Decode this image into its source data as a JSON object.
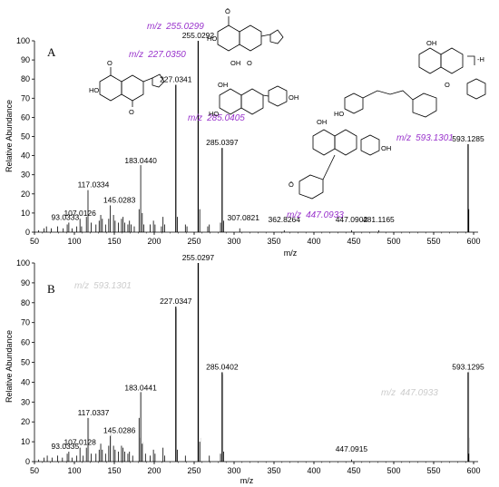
{
  "chart_data": [
    {
      "type": "bar",
      "panel": "A",
      "xlabel": "m/z",
      "ylabel": "Relative Abundance",
      "xlim": [
        50,
        600
      ],
      "ylim": [
        0,
        100
      ],
      "x_ticks": [
        "50",
        "100",
        "150",
        "200",
        "250",
        "300",
        "350",
        "400",
        "450",
        "500",
        "550",
        "600"
      ],
      "y_ticks": [
        "0",
        "10",
        "20",
        "30",
        "40",
        "50",
        "60",
        "70",
        "80",
        "90",
        "100"
      ],
      "peaks": [
        {
          "mz": 55,
          "y": 1
        },
        {
          "mz": 62,
          "y": 2
        },
        {
          "mz": 65,
          "y": 3
        },
        {
          "mz": 71,
          "y": 2
        },
        {
          "mz": 79,
          "y": 3
        },
        {
          "mz": 86,
          "y": 2
        },
        {
          "mz": 91,
          "y": 4
        },
        {
          "mz": 93.0333,
          "y": 5
        },
        {
          "mz": 97,
          "y": 2
        },
        {
          "mz": 103,
          "y": 3
        },
        {
          "mz": 107.0126,
          "y": 7
        },
        {
          "mz": 109,
          "y": 3
        },
        {
          "mz": 115,
          "y": 8
        },
        {
          "mz": 117.0334,
          "y": 22
        },
        {
          "mz": 121,
          "y": 5
        },
        {
          "mz": 127,
          "y": 4
        },
        {
          "mz": 131,
          "y": 6
        },
        {
          "mz": 133,
          "y": 9
        },
        {
          "mz": 135,
          "y": 7
        },
        {
          "mz": 139,
          "y": 4
        },
        {
          "mz": 143,
          "y": 7
        },
        {
          "mz": 145.0283,
          "y": 14
        },
        {
          "mz": 149,
          "y": 9
        },
        {
          "mz": 151,
          "y": 6
        },
        {
          "mz": 155,
          "y": 5
        },
        {
          "mz": 159,
          "y": 7
        },
        {
          "mz": 161,
          "y": 8
        },
        {
          "mz": 163,
          "y": 5
        },
        {
          "mz": 167,
          "y": 4
        },
        {
          "mz": 169,
          "y": 6
        },
        {
          "mz": 171,
          "y": 4
        },
        {
          "mz": 175,
          "y": 3
        },
        {
          "mz": 181,
          "y": 12
        },
        {
          "mz": 183.044,
          "y": 35
        },
        {
          "mz": 185,
          "y": 10
        },
        {
          "mz": 187,
          "y": 4
        },
        {
          "mz": 195,
          "y": 4
        },
        {
          "mz": 199,
          "y": 6
        },
        {
          "mz": 201,
          "y": 4
        },
        {
          "mz": 209,
          "y": 3
        },
        {
          "mz": 211,
          "y": 8
        },
        {
          "mz": 213,
          "y": 4
        },
        {
          "mz": 227.0341,
          "y": 77
        },
        {
          "mz": 229,
          "y": 8
        },
        {
          "mz": 239,
          "y": 4
        },
        {
          "mz": 241,
          "y": 3
        },
        {
          "mz": 255.0292,
          "y": 100
        },
        {
          "mz": 257,
          "y": 12
        },
        {
          "mz": 267,
          "y": 3
        },
        {
          "mz": 269,
          "y": 4
        },
        {
          "mz": 283,
          "y": 5
        },
        {
          "mz": 285.0397,
          "y": 44
        },
        {
          "mz": 287,
          "y": 6
        },
        {
          "mz": 307.0821,
          "y": 2
        },
        {
          "mz": 362.8264,
          "y": 1
        },
        {
          "mz": 447.0902,
          "y": 1
        },
        {
          "mz": 481.1165,
          "y": 1
        },
        {
          "mz": 593.1285,
          "y": 46
        },
        {
          "mz": 594,
          "y": 12
        }
      ],
      "peak_labels": [
        {
          "mz": 93.0333,
          "text": "93.0333"
        },
        {
          "mz": 107.0126,
          "text": "107.0126"
        },
        {
          "mz": 117.0334,
          "text": "117.0334"
        },
        {
          "mz": 145.0283,
          "text": "145.0283"
        },
        {
          "mz": 183.044,
          "text": "183.0440"
        },
        {
          "mz": 227.0341,
          "text": "227.0341"
        },
        {
          "mz": 255.0292,
          "text": "255.0292"
        },
        {
          "mz": 285.0397,
          "text": "285.0397"
        },
        {
          "mz": 307.0821,
          "text": "307.0821"
        },
        {
          "mz": 362.8264,
          "text": "362.8264"
        },
        {
          "mz": 447.0902,
          "text": "447.0902"
        },
        {
          "mz": 481.1165,
          "text": "481.1165"
        },
        {
          "mz": 593.1285,
          "text": "593.1285"
        }
      ],
      "theoretical_labels": [
        {
          "prefix": "m/z",
          "value": "255.0299"
        },
        {
          "prefix": "m/z",
          "value": "227.0350"
        },
        {
          "prefix": "m/z",
          "value": "285.0405"
        },
        {
          "prefix": "m/z",
          "value": "447.0933"
        },
        {
          "prefix": "m/z",
          "value": "593.1301"
        }
      ],
      "structure_text": {
        "o_minus": "Ō",
        "ho": "HO",
        "oh": "OH",
        "o": "O",
        "bracket": "-H"
      }
    },
    {
      "type": "bar",
      "panel": "B",
      "xlabel": "m/z",
      "ylabel": "Relative Abundance",
      "xlim": [
        50,
        600
      ],
      "ylim": [
        0,
        100
      ],
      "x_ticks": [
        "50",
        "100",
        "150",
        "200",
        "250",
        "300",
        "350",
        "400",
        "450",
        "500",
        "550",
        "600"
      ],
      "y_ticks": [
        "0",
        "10",
        "20",
        "30",
        "40",
        "50",
        "60",
        "70",
        "80",
        "90",
        "100"
      ],
      "peaks": [
        {
          "mz": 55,
          "y": 1
        },
        {
          "mz": 62,
          "y": 2
        },
        {
          "mz": 66,
          "y": 3
        },
        {
          "mz": 72,
          "y": 2
        },
        {
          "mz": 79,
          "y": 3
        },
        {
          "mz": 85,
          "y": 2
        },
        {
          "mz": 91,
          "y": 4
        },
        {
          "mz": 93.0335,
          "y": 5
        },
        {
          "mz": 97,
          "y": 2
        },
        {
          "mz": 103,
          "y": 3
        },
        {
          "mz": 107.0128,
          "y": 7
        },
        {
          "mz": 111,
          "y": 3
        },
        {
          "mz": 115,
          "y": 7
        },
        {
          "mz": 117.0337,
          "y": 22
        },
        {
          "mz": 121,
          "y": 4
        },
        {
          "mz": 127,
          "y": 4
        },
        {
          "mz": 131,
          "y": 6
        },
        {
          "mz": 133,
          "y": 9
        },
        {
          "mz": 135,
          "y": 6
        },
        {
          "mz": 139,
          "y": 4
        },
        {
          "mz": 143,
          "y": 8
        },
        {
          "mz": 145.0286,
          "y": 13
        },
        {
          "mz": 149,
          "y": 8
        },
        {
          "mz": 151,
          "y": 6
        },
        {
          "mz": 155,
          "y": 5
        },
        {
          "mz": 159,
          "y": 8
        },
        {
          "mz": 161,
          "y": 7
        },
        {
          "mz": 163,
          "y": 5
        },
        {
          "mz": 167,
          "y": 4
        },
        {
          "mz": 169,
          "y": 5
        },
        {
          "mz": 173,
          "y": 3
        },
        {
          "mz": 181,
          "y": 22
        },
        {
          "mz": 183.0441,
          "y": 35
        },
        {
          "mz": 185,
          "y": 9
        },
        {
          "mz": 189,
          "y": 4
        },
        {
          "mz": 195,
          "y": 3
        },
        {
          "mz": 199,
          "y": 6
        },
        {
          "mz": 201,
          "y": 4
        },
        {
          "mz": 211,
          "y": 7
        },
        {
          "mz": 213,
          "y": 3
        },
        {
          "mz": 227.0347,
          "y": 78
        },
        {
          "mz": 229,
          "y": 6
        },
        {
          "mz": 239,
          "y": 3
        },
        {
          "mz": 255.0297,
          "y": 100
        },
        {
          "mz": 257,
          "y": 10
        },
        {
          "mz": 269,
          "y": 3
        },
        {
          "mz": 283,
          "y": 4
        },
        {
          "mz": 285.0402,
          "y": 45
        },
        {
          "mz": 287,
          "y": 5
        },
        {
          "mz": 447.0915,
          "y": 1
        },
        {
          "mz": 593.1295,
          "y": 45
        },
        {
          "mz": 594,
          "y": 4
        }
      ],
      "peak_labels": [
        {
          "mz": 93.0335,
          "text": "93.0335"
        },
        {
          "mz": 107.0128,
          "text": "107.0128"
        },
        {
          "mz": 117.0337,
          "text": "117.0337"
        },
        {
          "mz": 145.0286,
          "text": "145.0286"
        },
        {
          "mz": 183.0441,
          "text": "183.0441"
        },
        {
          "mz": 227.0347,
          "text": "227.0347"
        },
        {
          "mz": 255.0297,
          "text": "255.0297"
        },
        {
          "mz": 285.0402,
          "text": "285.0402"
        },
        {
          "mz": 447.0915,
          "text": "447.0915"
        },
        {
          "mz": 593.1295,
          "text": "593.1295"
        }
      ],
      "ghost_labels": [
        {
          "prefix": "m/z",
          "value": "593.1301"
        },
        {
          "prefix": "m/z",
          "value": "447.0933"
        }
      ]
    }
  ],
  "colors": {
    "peak": "#000000",
    "theoretical": "#9933cc",
    "ghost": "#cccccc",
    "axis": "#000000"
  }
}
